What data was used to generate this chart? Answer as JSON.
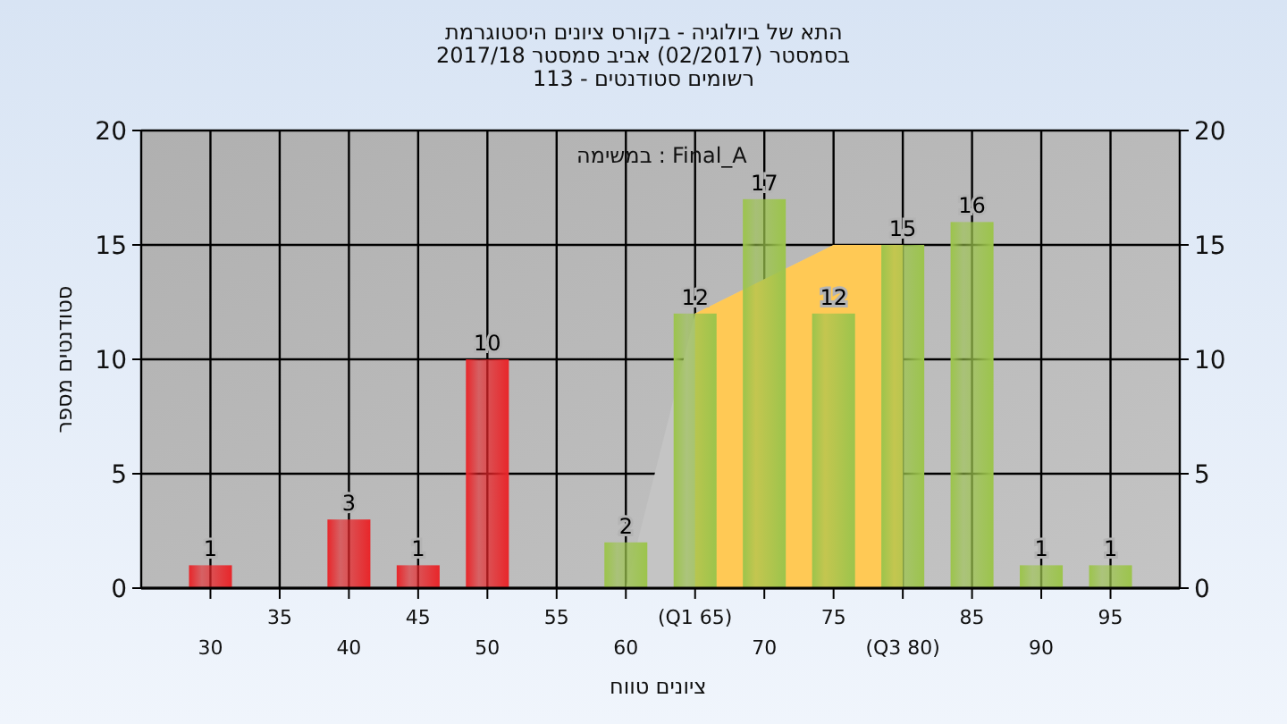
{
  "chart_data": {
    "type": "bar",
    "title": "היסטוגרמת ציונים בקורס - ביולוגיה של התא",
    "subtitle": "2017/18 סמסטר אביב (02/2017) בסמסטר",
    "annotations": [
      "113 - סטודנטים רשומים",
      "במשימה : Final_A"
    ],
    "xlabel": "טווח ציונים",
    "ylabel": "מספר סטודנטים",
    "categories": [
      "30",
      "35",
      "40",
      "45",
      "50",
      "55",
      "60",
      "(Q1 65)",
      "70",
      "75",
      "(Q3 80)",
      "85",
      "90",
      "95"
    ],
    "series": [
      {
        "type": "area",
        "color": "#c4c4c4",
        "values": [
          null,
          null,
          null,
          null,
          null,
          null,
          0,
          12,
          null,
          15,
          15,
          null,
          null,
          null
        ]
      },
      {
        "type": "area",
        "color": "#ffc955",
        "values": [
          null,
          null,
          null,
          null,
          null,
          null,
          null,
          12,
          null,
          15,
          15,
          null,
          null,
          null
        ]
      },
      {
        "values": [
          1,
          0,
          3,
          1,
          10,
          0,
          2,
          12,
          17,
          12,
          15,
          16,
          1,
          1
        ],
        "colors": [
          "#e8262a",
          "#e8262a",
          "#e8262a",
          "#e8262a",
          "#e8262a",
          "#e8262a",
          "#9cc44c",
          "#9cc44c",
          "#9cc44c",
          "#9cc44c",
          "#9cc44c",
          "#9cc44c",
          "#9cc44c",
          "#9cc44c"
        ],
        "value_labels": [
          "1",
          null,
          "3",
          "1",
          "10",
          null,
          "2",
          "12",
          "17",
          "12",
          "15",
          "16",
          "1",
          "1"
        ]
      }
    ],
    "ylim": [
      0,
      20
    ],
    "yticks": [
      0,
      5,
      10,
      15,
      20
    ],
    "y2lim": [
      0,
      20
    ],
    "y2ticks": [
      0,
      5,
      10,
      15,
      20
    ],
    "grid": true
  }
}
